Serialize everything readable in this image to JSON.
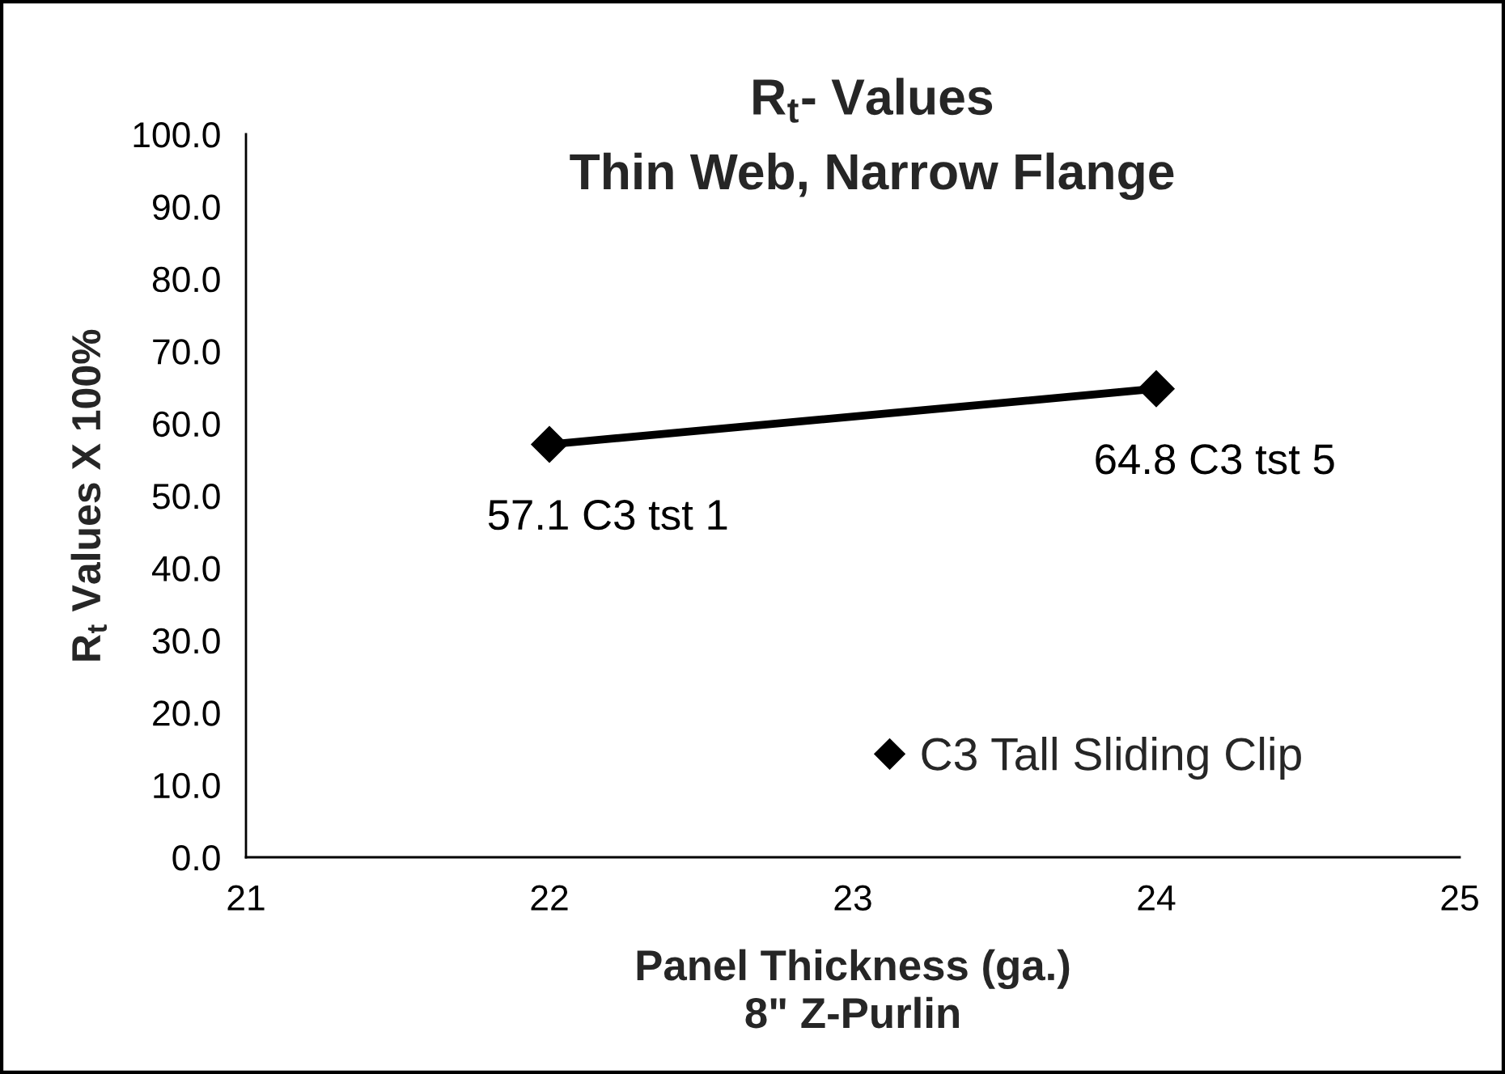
{
  "chart_data": {
    "type": "line",
    "title": "R$_{t}$- Values",
    "subtitle": "Thin Web, Narrow Flange",
    "xlabel": "Panel Thickness (ga.)\n8\" Z-Purlin",
    "ylabel": "R$_{t}$ Values X 100%",
    "x": [
      22,
      24
    ],
    "series": [
      {
        "name": "C3 Tall Sliding Clip",
        "color": "#000000",
        "values": [
          57.1,
          64.8
        ],
        "value_labels": [
          "57.1 C3 tst 1",
          "64.8 C3 tst 5"
        ]
      }
    ],
    "xlim": [
      21,
      25
    ],
    "xticks": [
      21,
      22,
      23,
      24,
      25
    ],
    "ylim": [
      0,
      100
    ],
    "yticks": [
      {
        "value": 0,
        "label": "0.0"
      },
      {
        "value": 10,
        "label": "10.0"
      },
      {
        "value": 20,
        "label": "20.0"
      },
      {
        "value": 30,
        "label": "30.0"
      },
      {
        "value": 40,
        "label": "40.0"
      },
      {
        "value": 50,
        "label": "50.0"
      },
      {
        "value": 60,
        "label": "60.0"
      },
      {
        "value": 70,
        "label": "70.0"
      },
      {
        "value": 80,
        "label": "80.0"
      },
      {
        "value": 90,
        "label": "90.0"
      },
      {
        "value": 100,
        "label": "100.0"
      }
    ],
    "grid": false,
    "legend": "bottom right",
    "marker": "diamond",
    "line_style": "solid"
  }
}
